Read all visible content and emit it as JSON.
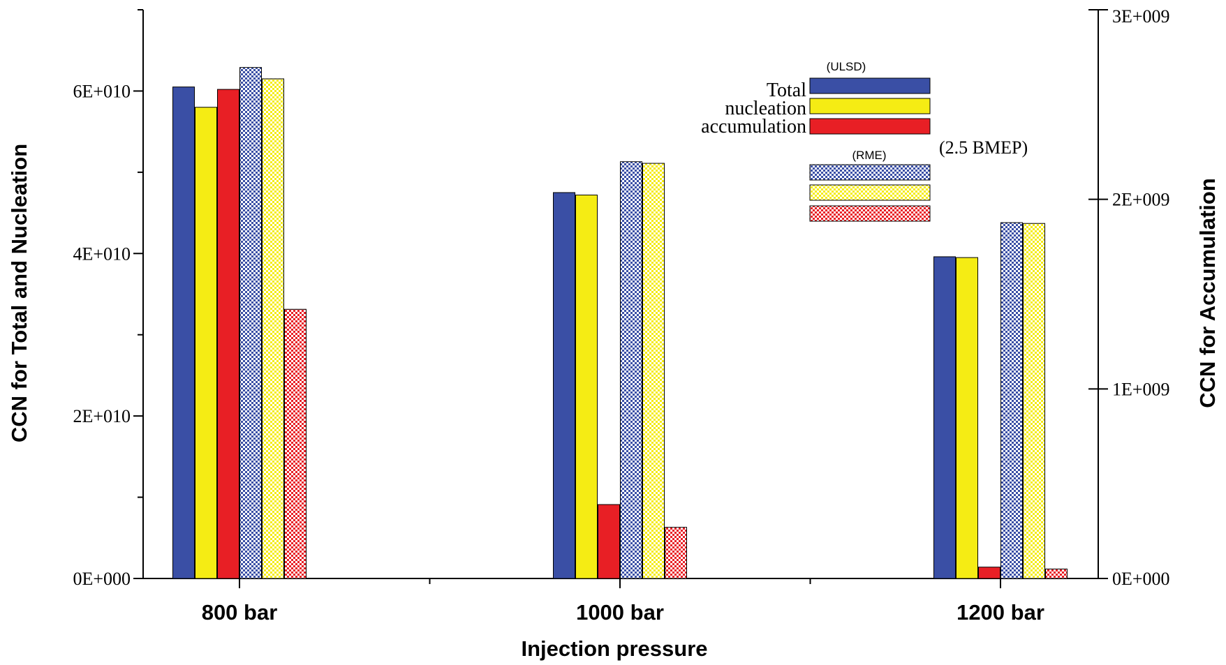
{
  "chart_data": {
    "type": "bar",
    "categories": [
      "800 bar",
      "1000 bar",
      "1200 bar"
    ],
    "xlabel": "Injection pressure",
    "ylabel_left": "CCN for Total and Nucleation",
    "ylabel_right": "CCN for Accumulation",
    "ylim_left": [
      0,
      70000000000
    ],
    "ylim_right": [
      0,
      3000000000
    ],
    "left_ticks": [
      {
        "value": 0,
        "label": "0E+000"
      },
      {
        "value": 20000000000,
        "label": "2E+010"
      },
      {
        "value": 40000000000,
        "label": "4E+010"
      },
      {
        "value": 60000000000,
        "label": "6E+010"
      }
    ],
    "right_ticks": [
      {
        "value": 0,
        "label": "0E+000"
      },
      {
        "value": 1000000000,
        "label": "1E+009"
      },
      {
        "value": 2000000000,
        "label": "2E+009"
      },
      {
        "value": 3000000000,
        "label": "3E+009"
      }
    ],
    "series": [
      {
        "name": "Total",
        "group": "ULSD",
        "axis": "left",
        "color": "#3a4fa5",
        "pattern": "solid",
        "values": [
          60500000000,
          47500000000,
          39600000000
        ]
      },
      {
        "name": "nucleation",
        "group": "ULSD",
        "axis": "left",
        "color": "#f5ec14",
        "pattern": "solid",
        "values": [
          58000000000,
          47200000000,
          39500000000
        ]
      },
      {
        "name": "accumulation",
        "group": "ULSD",
        "axis": "right",
        "color": "#e81f25",
        "pattern": "solid",
        "values": [
          2580000000,
          390000000,
          60000000
        ]
      },
      {
        "name": "Total",
        "group": "RME",
        "axis": "left",
        "color": "#3a4fa5",
        "pattern": "checker",
        "values": [
          62900000000,
          51300000000,
          43800000000
        ]
      },
      {
        "name": "nucleation",
        "group": "RME",
        "axis": "left",
        "color": "#f5ec14",
        "pattern": "checker",
        "values": [
          61500000000,
          51100000000,
          43700000000
        ]
      },
      {
        "name": "accumulation",
        "group": "RME",
        "axis": "right",
        "color": "#e81f25",
        "pattern": "checker",
        "values": [
          1420000000,
          270000000,
          50000000
        ]
      }
    ],
    "legend": {
      "placement": "top-right",
      "ulsd_title": "(ULSD)",
      "rme_title": "(RME)",
      "labels": [
        "Total",
        "nucleation",
        "accumulation"
      ]
    },
    "annotation": "(2.5 BMEP)"
  }
}
